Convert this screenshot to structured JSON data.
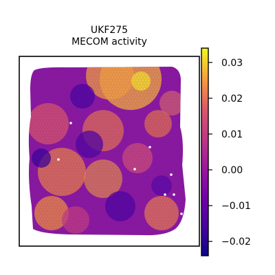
{
  "chart_data": {
    "type": "heatmap",
    "title": "UKF275",
    "subtitle": "MECOM activity",
    "colormap": "plasma",
    "colorbar": {
      "ticks": [
        0.03,
        0.02,
        0.01,
        0.0,
        -0.01,
        -0.02
      ],
      "tick_labels": [
        "0.03",
        "0.02",
        "0.01",
        "0.00",
        "−0.01",
        "−0.02"
      ],
      "range": [
        -0.024,
        0.034
      ]
    },
    "grid": false,
    "axes_ticks": false,
    "legend": "colorbar-right"
  },
  "colors": {
    "background": "#ffffff",
    "frame": "#000000"
  }
}
